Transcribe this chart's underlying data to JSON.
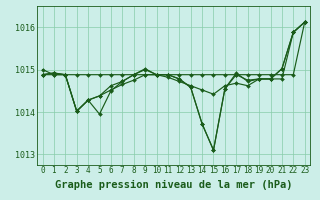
{
  "background_color": "#cceee8",
  "grid_color": "#88ccaa",
  "line_color": "#1a5c1a",
  "title": "Graphe pression niveau de la mer (hPa)",
  "title_fontsize": 7.5,
  "ylim": [
    1012.75,
    1016.5
  ],
  "xlim": [
    -0.5,
    23.5
  ],
  "yticks": [
    1013,
    1014,
    1015,
    1016
  ],
  "xtick_labels": [
    "0",
    "1",
    "2",
    "3",
    "4",
    "5",
    "6",
    "7",
    "8",
    "9",
    "10",
    "11",
    "12",
    "13",
    "14",
    "15",
    "16",
    "17",
    "18",
    "19",
    "20",
    "21",
    "22",
    "23"
  ],
  "series1": [
    1015.0,
    1014.88,
    1014.88,
    1014.02,
    1014.28,
    1013.95,
    1014.5,
    1014.72,
    1014.88,
    1015.0,
    1014.88,
    1014.88,
    1014.78,
    1014.58,
    1013.72,
    1013.1,
    1014.55,
    1014.88,
    1014.75,
    1014.78,
    1014.78,
    1015.02,
    1015.88,
    1016.12
  ],
  "series2": [
    1014.88,
    1014.88,
    1014.88,
    1014.88,
    1014.88,
    1014.88,
    1014.88,
    1014.88,
    1014.88,
    1014.88,
    1014.88,
    1014.88,
    1014.88,
    1014.88,
    1014.88,
    1014.88,
    1014.88,
    1014.88,
    1014.88,
    1014.88,
    1014.88,
    1014.88,
    1014.88,
    1016.12
  ],
  "series3": [
    1014.88,
    1014.92,
    1014.88,
    1014.02,
    1014.28,
    1014.38,
    1014.52,
    1014.65,
    1014.75,
    1014.88,
    1014.88,
    1014.82,
    1014.72,
    1014.62,
    1014.52,
    1014.42,
    1014.62,
    1014.68,
    1014.62,
    1014.78,
    1014.78,
    1014.78,
    1015.88,
    1016.12
  ],
  "series4": [
    1014.88,
    1014.92,
    1014.88,
    1014.02,
    1014.28,
    1014.38,
    1014.62,
    1014.72,
    1014.88,
    1015.02,
    1014.88,
    1014.88,
    1014.78,
    1014.58,
    1013.72,
    1013.1,
    1014.55,
    1014.92,
    1014.72,
    1014.78,
    1014.78,
    1015.02,
    1015.88,
    1016.12
  ],
  "linewidth": 0.85,
  "markersize": 2.0,
  "tick_fontsize": 5.5,
  "ytick_fontsize": 6.0
}
